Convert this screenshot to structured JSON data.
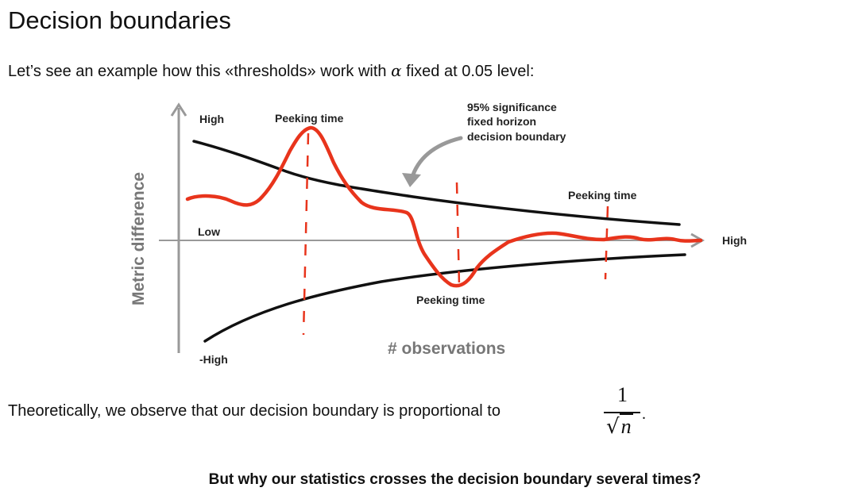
{
  "slide": {
    "title": "Decision boundaries",
    "intro_before": "Let’s see an example how this «thresholds» work with ",
    "intro_symbol": "α",
    "intro_after": " fixed at 0.05 level:",
    "theory_text": "Theoretically, we observe that our decision boundary is proportional to",
    "formula": {
      "numerator": "1",
      "radical": "√",
      "variable": "n",
      "trailing": "."
    },
    "question": "But why our statistics crosses the decision boundary several times?"
  },
  "diagram": {
    "y_axis_title": "Metric difference",
    "x_axis_title": "# observations",
    "label_high_top": "High",
    "label_low": "Low",
    "label_neg_high": "-High",
    "label_high_right": "High",
    "peek_label_1": "Peeking time",
    "peek_label_2": "Peeking time",
    "peek_label_3": "Peeking time",
    "annotation_line1": "95% significance",
    "annotation_line2": "fixed horizon",
    "annotation_line3": "decision boundary",
    "colors": {
      "axis": "#999999",
      "boundary": "#111111",
      "statistic": "#e8341c",
      "arrow": "#999999"
    }
  }
}
